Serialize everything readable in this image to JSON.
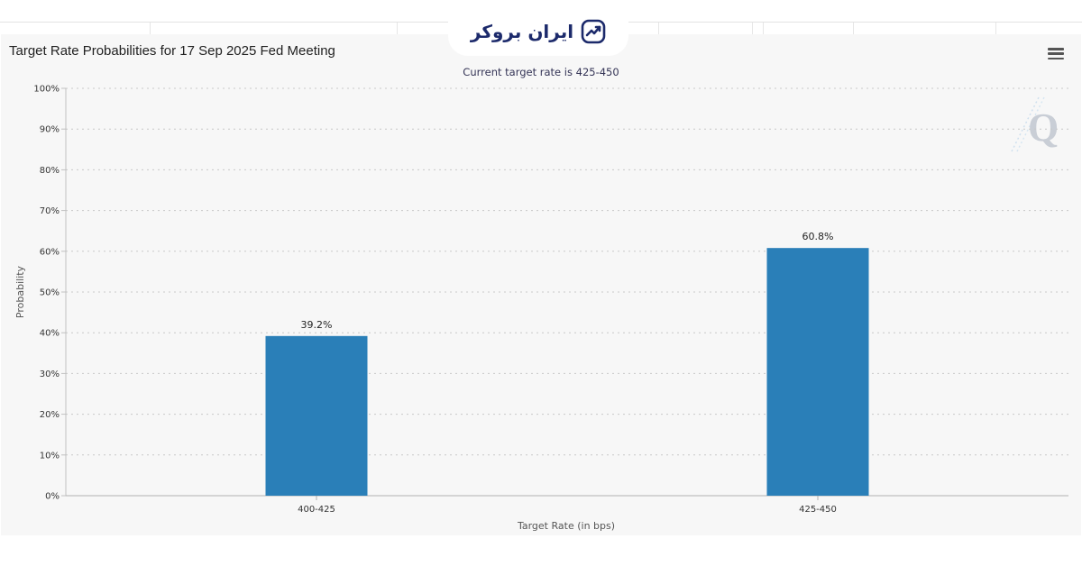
{
  "brand": {
    "name": "ایران بروکر"
  },
  "chart_data": {
    "type": "bar",
    "title": "Target Rate Probabilities for 17 Sep 2025 Fed Meeting",
    "subtitle": "Current target rate is 425-450",
    "xlabel": "Target Rate (in bps)",
    "ylabel": "Probability",
    "categories": [
      "400-425",
      "425-450"
    ],
    "values": [
      39.2,
      60.8
    ],
    "data_labels": [
      "39.2%",
      "60.8%"
    ],
    "ylim": [
      0,
      100
    ],
    "yticks": [
      0,
      10,
      20,
      30,
      40,
      50,
      60,
      70,
      80,
      90,
      100
    ],
    "ytick_labels": [
      "0%",
      "10%",
      "20%",
      "30%",
      "40%",
      "50%",
      "60%",
      "70%",
      "80%",
      "90%",
      "100%"
    ],
    "grid": "horizontal dotted",
    "bar_color": "#2a7fb8"
  },
  "icons": {
    "menu": "hamburger-menu-icon",
    "logo": "trend-up-icon",
    "watermark": "q-logo-icon"
  }
}
